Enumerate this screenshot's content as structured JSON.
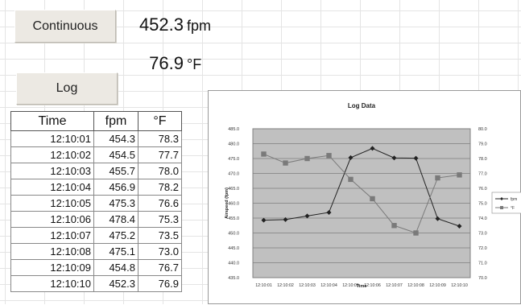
{
  "controls": {
    "continuous_label": "Continuous",
    "log_label": "Log"
  },
  "readings": {
    "speed_value": "452.3",
    "speed_unit": "fpm",
    "temp_value": "76.9",
    "temp_unit": "°F"
  },
  "log_table": {
    "headers": [
      "Time",
      "fpm",
      "°F"
    ],
    "rows": [
      [
        "12:10:01",
        "454.3",
        "78.3"
      ],
      [
        "12:10:02",
        "454.5",
        "77.7"
      ],
      [
        "12:10:03",
        "455.7",
        "78.0"
      ],
      [
        "12:10:04",
        "456.9",
        "78.2"
      ],
      [
        "12:10:05",
        "475.3",
        "76.6"
      ],
      [
        "12:10:06",
        "478.4",
        "75.3"
      ],
      [
        "12:10:07",
        "475.2",
        "73.5"
      ],
      [
        "12:10:08",
        "475.1",
        "73.0"
      ],
      [
        "12:10:09",
        "454.8",
        "76.7"
      ],
      [
        "12:10:10",
        "452.3",
        "76.9"
      ]
    ]
  },
  "chart_data": {
    "type": "line",
    "title": "Log Data",
    "xlabel": "Time",
    "ylabel": "Airspeed (fpm)",
    "x": [
      "12:10:01",
      "12:10:02",
      "12:10:03",
      "12:10:04",
      "12:10:05",
      "12:10:06",
      "12:10:07",
      "12:10:08",
      "12:10:09",
      "12:10:10"
    ],
    "series": [
      {
        "name": "fpm",
        "axis": "left",
        "color": "#222222",
        "marker": "diamond",
        "values": [
          454.3,
          454.5,
          455.7,
          456.9,
          475.3,
          478.4,
          475.2,
          475.1,
          454.8,
          452.3
        ]
      },
      {
        "name": "°F",
        "axis": "right",
        "color": "#7a7a7a",
        "marker": "square",
        "values": [
          78.3,
          77.7,
          78.0,
          78.2,
          76.6,
          75.3,
          73.5,
          73.0,
          76.7,
          76.9
        ]
      }
    ],
    "ylim": [
      435,
      485
    ],
    "yticks": [
      "485.0",
      "480.0",
      "475.0",
      "470.0",
      "465.0",
      "460.0",
      "455.0",
      "450.0",
      "445.0",
      "440.0",
      "435.0"
    ],
    "y2lim": [
      70,
      80
    ],
    "y2ticks": [
      "80.0",
      "79.0",
      "78.0",
      "77.0",
      "76.0",
      "75.0",
      "74.0",
      "73.0",
      "72.0",
      "71.0",
      "70.0"
    ],
    "grid": true,
    "plot_background": "#c0c0c0",
    "legend": "right"
  }
}
